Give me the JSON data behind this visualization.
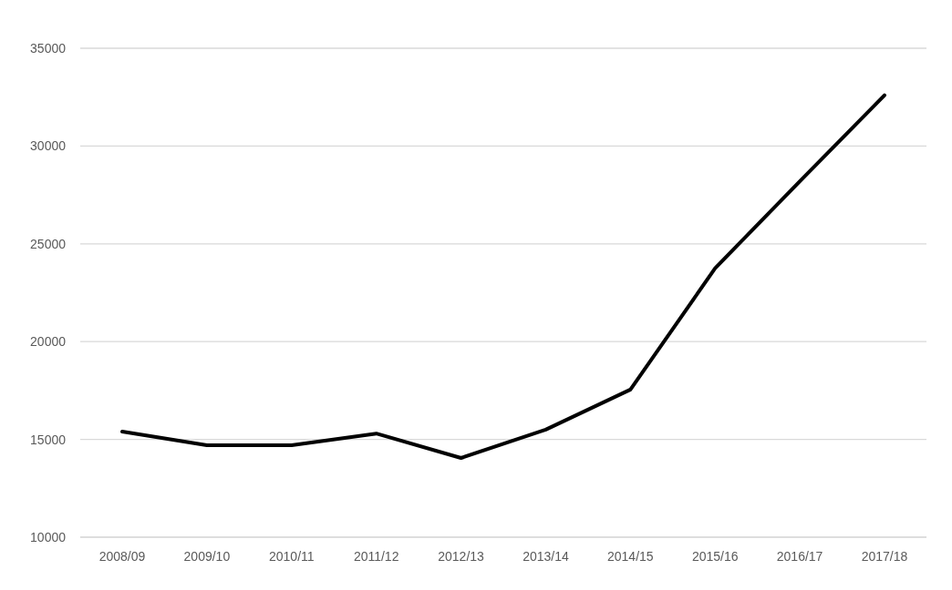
{
  "chart_data": {
    "type": "line",
    "categories": [
      "2008/09",
      "2009/10",
      "2010/11",
      "2011/12",
      "2012/13",
      "2013/14",
      "2014/15",
      "2015/16",
      "2016/17",
      "2017/18"
    ],
    "series": [
      {
        "color": "#000000",
        "values": [
          15400,
          14700,
          14700,
          15300,
          14050,
          15500,
          17550,
          23750,
          28200,
          32600
        ]
      }
    ],
    "ylim": [
      10000,
      35000
    ],
    "yticks": [
      10000,
      15000,
      20000,
      25000,
      30000,
      35000
    ],
    "grid": "y",
    "legend": false,
    "marker": "none",
    "line_style": "solid"
  }
}
